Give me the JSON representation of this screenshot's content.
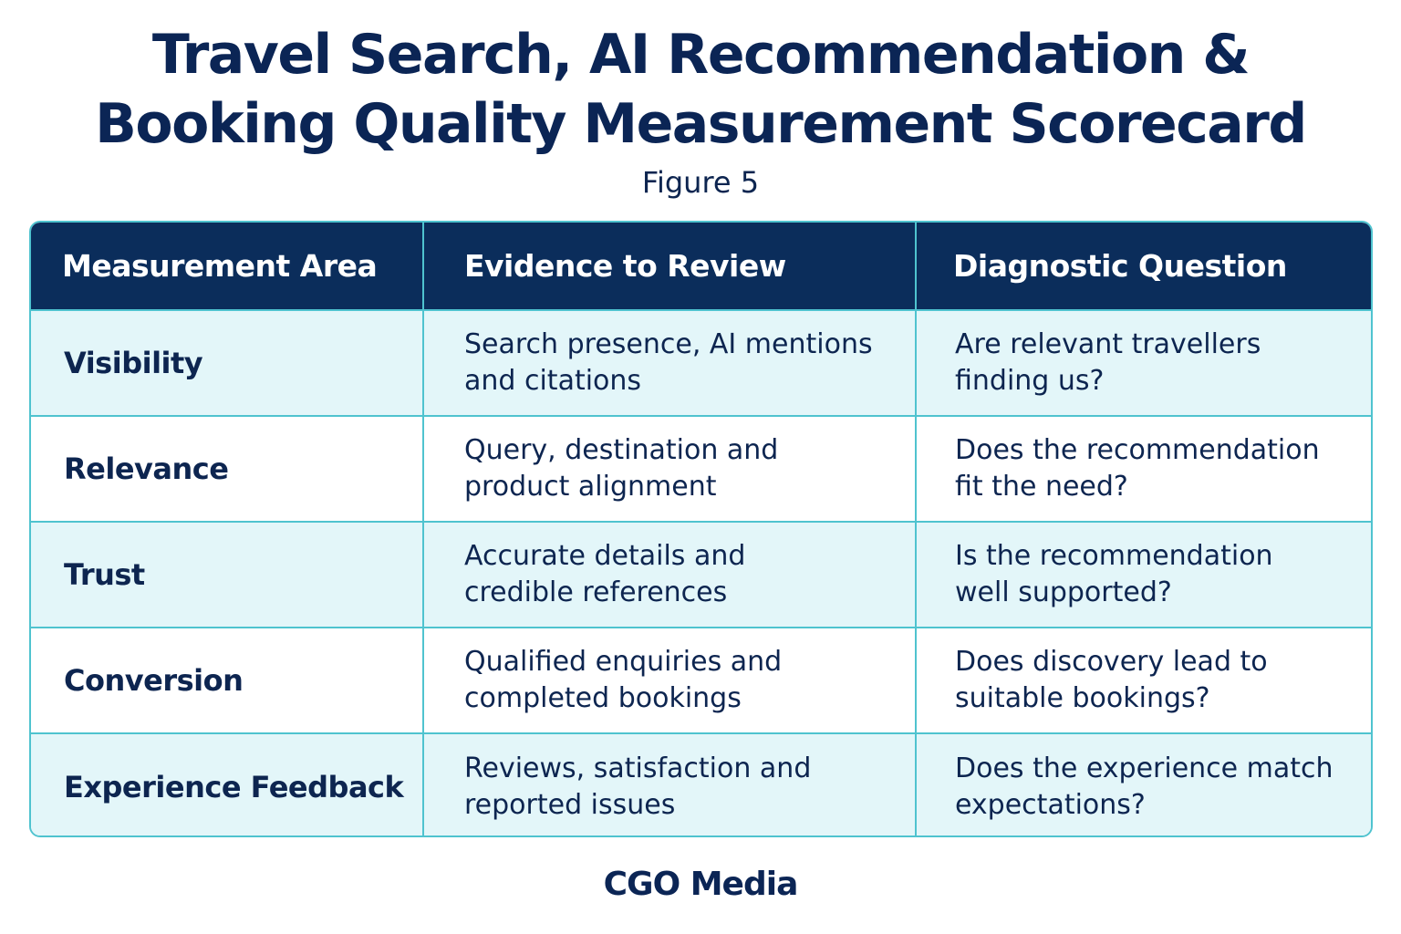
{
  "title_lines": [
    "Travel Search, AI Recommendation &",
    "Booking Quality Measurement Scorecard"
  ],
  "subtitle": "Figure 5",
  "table": {
    "headers": [
      "Measurement Area",
      "Evidence to Review",
      "Diagnostic Question"
    ],
    "rows": [
      {
        "area": "Visibility",
        "evidence": [
          "Search presence, AI mentions",
          "and citations"
        ],
        "question": [
          "Are relevant travellers",
          "finding us?"
        ]
      },
      {
        "area": "Relevance",
        "evidence": [
          "Query, destination and",
          "product alignment"
        ],
        "question": [
          "Does the recommendation",
          "fit the need?"
        ]
      },
      {
        "area": "Trust",
        "evidence": [
          "Accurate details and",
          "credible references"
        ],
        "question": [
          "Is the recommendation",
          "well supported?"
        ]
      },
      {
        "area": "Conversion",
        "evidence": [
          "Qualified enquiries and",
          "completed bookings"
        ],
        "question": [
          "Does discovery lead to",
          "suitable bookings?"
        ]
      },
      {
        "area": "Experience Feedback",
        "evidence": [
          "Reviews, satisfaction and",
          "reported issues"
        ],
        "question": [
          "Does the experience match",
          "expectations?"
        ]
      }
    ]
  },
  "footer": "CGO Media",
  "colors": {
    "header_bg": "#0b2d5b",
    "row_shade": "#e3f6f9",
    "border": "#4fc3cf",
    "text": "#0d2550"
  }
}
